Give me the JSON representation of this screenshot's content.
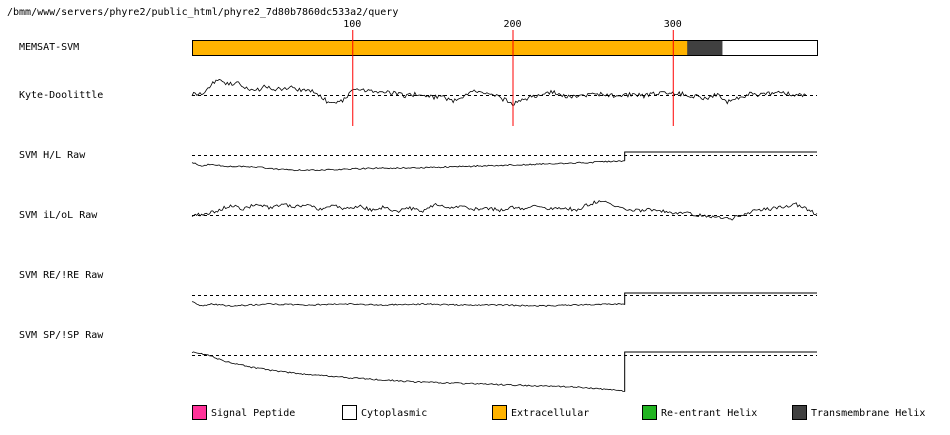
{
  "header": {
    "path": "/bmm/www/servers/phyre2/public_html/phyre2_7d80b7860dc533a2/query"
  },
  "chart_data": {
    "type": "line",
    "x_ticks": [
      100,
      200,
      300
    ],
    "sequence_length": 390,
    "topology": {
      "label": "MEMSAT-SVM",
      "segments": [
        {
          "start": 1,
          "end": 310,
          "class": "Extracellular"
        },
        {
          "start": 310,
          "end": 332,
          "class": "Transmembrane Helix"
        },
        {
          "start": 332,
          "end": 390,
          "class": "Cytoplasmic"
        }
      ]
    },
    "tracks": [
      {
        "label": "Kyte-Doolittle",
        "end": 383,
        "profile": [
          [
            0,
            0.05
          ],
          [
            8,
            0.1
          ],
          [
            12,
            0.55
          ],
          [
            16,
            0.75
          ],
          [
            22,
            0.55
          ],
          [
            28,
            0.6
          ],
          [
            34,
            0.3
          ],
          [
            40,
            0.2
          ],
          [
            46,
            0.45
          ],
          [
            52,
            0.25
          ],
          [
            60,
            0.4
          ],
          [
            66,
            0.25
          ],
          [
            72,
            0.3
          ],
          [
            78,
            0.05
          ],
          [
            84,
            -0.3
          ],
          [
            90,
            -0.45
          ],
          [
            96,
            -0.2
          ],
          [
            100,
            0.25
          ],
          [
            104,
            0.35
          ],
          [
            110,
            0.2
          ],
          [
            118,
            0.1
          ],
          [
            126,
            0.15
          ],
          [
            132,
            -0.05
          ],
          [
            140,
            0.05
          ],
          [
            148,
            -0.1
          ],
          [
            156,
            -0.1
          ],
          [
            164,
            -0.3
          ],
          [
            170,
            0.0
          ],
          [
            176,
            0.2
          ],
          [
            182,
            0.05
          ],
          [
            188,
            0.0
          ],
          [
            194,
            -0.2
          ],
          [
            200,
            -0.45
          ],
          [
            206,
            -0.25
          ],
          [
            212,
            -0.1
          ],
          [
            218,
            0.05
          ],
          [
            226,
            0.15
          ],
          [
            234,
            -0.1
          ],
          [
            242,
            -0.05
          ],
          [
            250,
            0.0
          ],
          [
            258,
            0.05
          ],
          [
            266,
            -0.1
          ],
          [
            274,
            0.05
          ],
          [
            282,
            -0.05
          ],
          [
            290,
            0.1
          ],
          [
            298,
            0.15
          ],
          [
            306,
            0.05
          ],
          [
            314,
            -0.05
          ],
          [
            320,
            -0.15
          ],
          [
            328,
            0.0
          ],
          [
            334,
            -0.35
          ],
          [
            340,
            -0.15
          ],
          [
            348,
            0.05
          ],
          [
            356,
            0.0
          ],
          [
            364,
            0.1
          ],
          [
            372,
            0.05
          ],
          [
            378,
            0.0
          ],
          [
            383,
            0.05
          ]
        ]
      },
      {
        "label": "SVM H/L Raw",
        "end": 270,
        "profile": [
          [
            0,
            -0.35
          ],
          [
            6,
            -0.55
          ],
          [
            12,
            -0.45
          ],
          [
            20,
            -0.55
          ],
          [
            40,
            -0.6
          ],
          [
            60,
            -0.75
          ],
          [
            80,
            -0.75
          ],
          [
            100,
            -0.7
          ],
          [
            120,
            -0.65
          ],
          [
            140,
            -0.65
          ],
          [
            160,
            -0.6
          ],
          [
            180,
            -0.55
          ],
          [
            200,
            -0.5
          ],
          [
            220,
            -0.45
          ],
          [
            240,
            -0.4
          ],
          [
            255,
            -0.35
          ],
          [
            268,
            -0.3
          ],
          [
            270,
            -0.3
          ]
        ],
        "tail_value": 0.15
      },
      {
        "label": "SVM iL/oL Raw",
        "end": 390,
        "profile": [
          [
            0,
            0.0
          ],
          [
            8,
            0.05
          ],
          [
            16,
            0.2
          ],
          [
            24,
            0.5
          ],
          [
            32,
            0.3
          ],
          [
            40,
            0.55
          ],
          [
            48,
            0.35
          ],
          [
            56,
            0.55
          ],
          [
            64,
            0.4
          ],
          [
            72,
            0.45
          ],
          [
            80,
            0.3
          ],
          [
            88,
            0.5
          ],
          [
            96,
            0.3
          ],
          [
            104,
            0.45
          ],
          [
            112,
            0.25
          ],
          [
            120,
            0.4
          ],
          [
            128,
            0.2
          ],
          [
            136,
            0.35
          ],
          [
            144,
            0.2
          ],
          [
            152,
            0.5
          ],
          [
            160,
            0.35
          ],
          [
            168,
            0.45
          ],
          [
            176,
            0.3
          ],
          [
            184,
            0.35
          ],
          [
            192,
            0.25
          ],
          [
            200,
            0.4
          ],
          [
            208,
            0.3
          ],
          [
            216,
            0.45
          ],
          [
            224,
            0.3
          ],
          [
            232,
            0.35
          ],
          [
            240,
            0.25
          ],
          [
            248,
            0.55
          ],
          [
            256,
            0.7
          ],
          [
            264,
            0.4
          ],
          [
            272,
            0.3
          ],
          [
            280,
            0.2
          ],
          [
            288,
            0.3
          ],
          [
            296,
            0.15
          ],
          [
            304,
            0.1
          ],
          [
            312,
            0.05
          ],
          [
            320,
            -0.05
          ],
          [
            328,
            -0.1
          ],
          [
            336,
            -0.2
          ],
          [
            344,
            0.05
          ],
          [
            352,
            0.2
          ],
          [
            360,
            0.3
          ],
          [
            368,
            0.4
          ],
          [
            376,
            0.55
          ],
          [
            384,
            0.3
          ],
          [
            390,
            0.0
          ]
        ]
      },
      {
        "label": "SVM RE/!RE Raw",
        "end": 270,
        "profile": [
          [
            0,
            -0.3
          ],
          [
            5,
            -0.55
          ],
          [
            12,
            -0.45
          ],
          [
            24,
            -0.55
          ],
          [
            48,
            -0.45
          ],
          [
            72,
            -0.5
          ],
          [
            96,
            -0.45
          ],
          [
            120,
            -0.5
          ],
          [
            144,
            -0.45
          ],
          [
            168,
            -0.5
          ],
          [
            192,
            -0.5
          ],
          [
            216,
            -0.55
          ],
          [
            240,
            -0.5
          ],
          [
            260,
            -0.45
          ],
          [
            270,
            -0.45
          ]
        ],
        "tail_value": 0.1
      },
      {
        "label": "SVM SP/!SP Raw",
        "end": 270,
        "profile": [
          [
            0,
            0.15
          ],
          [
            10,
            0.0
          ],
          [
            20,
            -0.3
          ],
          [
            36,
            -0.6
          ],
          [
            52,
            -0.8
          ],
          [
            68,
            -0.95
          ],
          [
            84,
            -1.05
          ],
          [
            100,
            -1.15
          ],
          [
            120,
            -1.25
          ],
          [
            140,
            -1.35
          ],
          [
            160,
            -1.4
          ],
          [
            180,
            -1.45
          ],
          [
            200,
            -1.5
          ],
          [
            220,
            -1.55
          ],
          [
            240,
            -1.6
          ],
          [
            255,
            -1.7
          ],
          [
            268,
            -1.8
          ],
          [
            270,
            -1.85
          ]
        ],
        "tail_value": 0.15
      }
    ],
    "legend": [
      {
        "label": "Signal Peptide",
        "color": "#ff3399"
      },
      {
        "label": "Cytoplasmic",
        "color": "#ffffff"
      },
      {
        "label": "Extracellular",
        "color": "#ffb300"
      },
      {
        "label": "Re-entrant Helix",
        "color": "#22b422"
      },
      {
        "label": "Transmembrane Helix",
        "color": "#404040"
      }
    ]
  }
}
